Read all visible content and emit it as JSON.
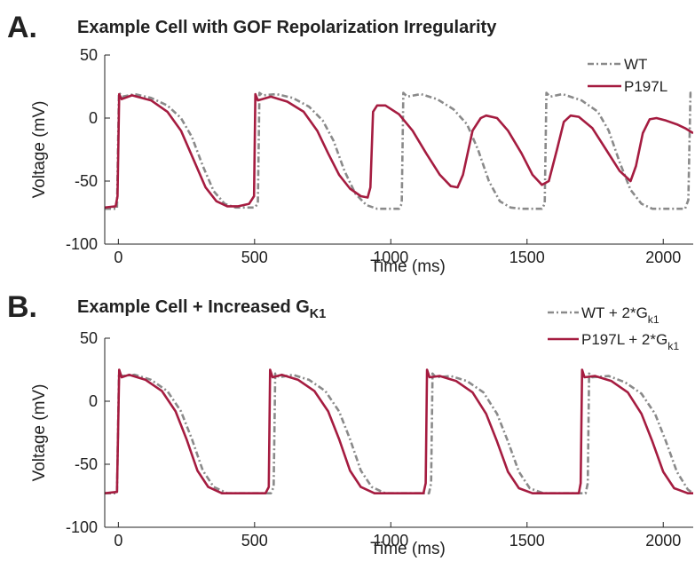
{
  "chart_data": [
    {
      "type": "line",
      "panel_label": "A.",
      "title": "Example Cell with GOF Repolarization Irregularity",
      "xlabel": "Time (ms)",
      "ylabel": "Voltage (mV)",
      "xlim": [
        -50,
        2110
      ],
      "ylim": [
        -100,
        50
      ],
      "xticks": [
        0,
        500,
        1000,
        1500,
        2000
      ],
      "yticks": [
        -100,
        -50,
        0,
        50
      ],
      "grid": false,
      "legend": "upper right inside",
      "series": [
        {
          "name": "WT",
          "color": "#8a8a8a",
          "linestyle": "dashdot",
          "x": [
            -50,
            -5,
            2,
            15,
            60,
            120,
            180,
            230,
            270,
            310,
            350,
            390,
            430,
            500,
            512,
            518,
            530,
            580,
            640,
            700,
            750,
            790,
            830,
            870,
            910,
            950,
            1030,
            1040,
            1046,
            1060,
            1110,
            1170,
            1230,
            1280,
            1320,
            1360,
            1400,
            1440,
            1480,
            1555,
            1565,
            1571,
            1585,
            1630,
            1700,
            1760,
            1800,
            1840,
            1880,
            1920,
            1960,
            2080,
            2092,
            2100,
            2110
          ],
          "values": [
            -72,
            -72,
            20,
            17,
            19,
            16,
            10,
            0,
            -15,
            -38,
            -58,
            -68,
            -71,
            -71,
            -68,
            20,
            18,
            19,
            16,
            9,
            -2,
            -18,
            -42,
            -60,
            -69,
            -72,
            -72,
            -68,
            20,
            17,
            19,
            15,
            7,
            -5,
            -25,
            -50,
            -66,
            -71,
            -72,
            -72,
            -68,
            20,
            17,
            19,
            14,
            5,
            -10,
            -35,
            -57,
            -68,
            -72,
            -72,
            -65,
            20,
            20
          ]
        },
        {
          "name": "P197L",
          "color": "#a51c40",
          "linestyle": "solid",
          "x": [
            -50,
            -10,
            -3,
            3,
            12,
            50,
            120,
            180,
            230,
            280,
            320,
            360,
            400,
            440,
            480,
            498,
            503,
            512,
            560,
            620,
            680,
            730,
            770,
            810,
            850,
            890,
            915,
            925,
            935,
            950,
            980,
            1030,
            1080,
            1130,
            1180,
            1220,
            1245,
            1265,
            1300,
            1330,
            1350,
            1390,
            1430,
            1480,
            1520,
            1555,
            1580,
            1610,
            1635,
            1660,
            1690,
            1740,
            1790,
            1840,
            1880,
            1900,
            1925,
            1950,
            1975,
            2010,
            2050,
            2080,
            2110
          ],
          "values": [
            -71,
            -70,
            -62,
            19,
            15,
            18,
            14,
            5,
            -10,
            -35,
            -55,
            -66,
            -70,
            -70,
            -68,
            -62,
            19,
            14,
            17,
            13,
            5,
            -10,
            -28,
            -45,
            -56,
            -62,
            -63,
            -55,
            5,
            10,
            10,
            3,
            -10,
            -28,
            -45,
            -54,
            -55,
            -45,
            -10,
            0,
            2,
            0,
            -10,
            -28,
            -45,
            -53,
            -50,
            -25,
            -3,
            2,
            1,
            -8,
            -25,
            -42,
            -50,
            -38,
            -12,
            -1,
            0,
            -2,
            -5,
            -8,
            -12
          ]
        }
      ]
    },
    {
      "type": "line",
      "panel_label": "B.",
      "title": "Example Cell + Increased G",
      "title_subscript": "K1",
      "xlabel": "Time (ms)",
      "ylabel": "Voltage (mV)",
      "xlim": [
        -50,
        2110
      ],
      "ylim": [
        -100,
        50
      ],
      "xticks": [
        0,
        500,
        1000,
        1500,
        2000
      ],
      "yticks": [
        -100,
        -50,
        0,
        50
      ],
      "grid": false,
      "legend": "upper right outside",
      "series": [
        {
          "name": "WT + 2*G",
          "name_subscript": "k1",
          "color": "#8a8a8a",
          "linestyle": "dashdot",
          "x": [
            -50,
            -5,
            2,
            15,
            60,
            120,
            180,
            230,
            270,
            310,
            350,
            400,
            560,
            570,
            576,
            590,
            640,
            700,
            760,
            810,
            850,
            890,
            930,
            980,
            1140,
            1148,
            1153,
            1165,
            1220,
            1280,
            1340,
            1390,
            1430,
            1470,
            1510,
            1560,
            1715,
            1723,
            1728,
            1740,
            1800,
            1860,
            1920,
            1970,
            2010,
            2050,
            2090,
            2110
          ],
          "values": [
            -73,
            -73,
            22,
            20,
            21,
            17,
            8,
            -8,
            -30,
            -55,
            -68,
            -73,
            -73,
            -68,
            22,
            19,
            21,
            17,
            8,
            -8,
            -30,
            -55,
            -68,
            -73,
            -73,
            -65,
            22,
            19,
            20,
            16,
            7,
            -10,
            -32,
            -56,
            -69,
            -73,
            -73,
            -65,
            22,
            19,
            20,
            15,
            6,
            -10,
            -32,
            -56,
            -70,
            -73
          ]
        },
        {
          "name": "P197L + 2*G",
          "name_subscript": "k1",
          "color": "#a51c40",
          "linestyle": "solid",
          "x": [
            -50,
            -5,
            3,
            12,
            40,
            100,
            160,
            210,
            250,
            290,
            330,
            380,
            540,
            552,
            557,
            566,
            600,
            660,
            720,
            770,
            810,
            850,
            890,
            940,
            1120,
            1128,
            1133,
            1142,
            1180,
            1240,
            1300,
            1350,
            1390,
            1430,
            1470,
            1520,
            1690,
            1697,
            1702,
            1711,
            1750,
            1810,
            1870,
            1920,
            1960,
            2000,
            2040,
            2090,
            2110
          ],
          "values": [
            -73,
            -72,
            25,
            19,
            21,
            17,
            8,
            -8,
            -30,
            -55,
            -68,
            -73,
            -73,
            -68,
            25,
            19,
            21,
            17,
            8,
            -8,
            -30,
            -55,
            -68,
            -73,
            -73,
            -65,
            25,
            19,
            20,
            16,
            7,
            -10,
            -32,
            -56,
            -69,
            -73,
            -73,
            -65,
            25,
            19,
            20,
            16,
            7,
            -10,
            -32,
            -56,
            -69,
            -73,
            -73
          ]
        }
      ]
    }
  ]
}
